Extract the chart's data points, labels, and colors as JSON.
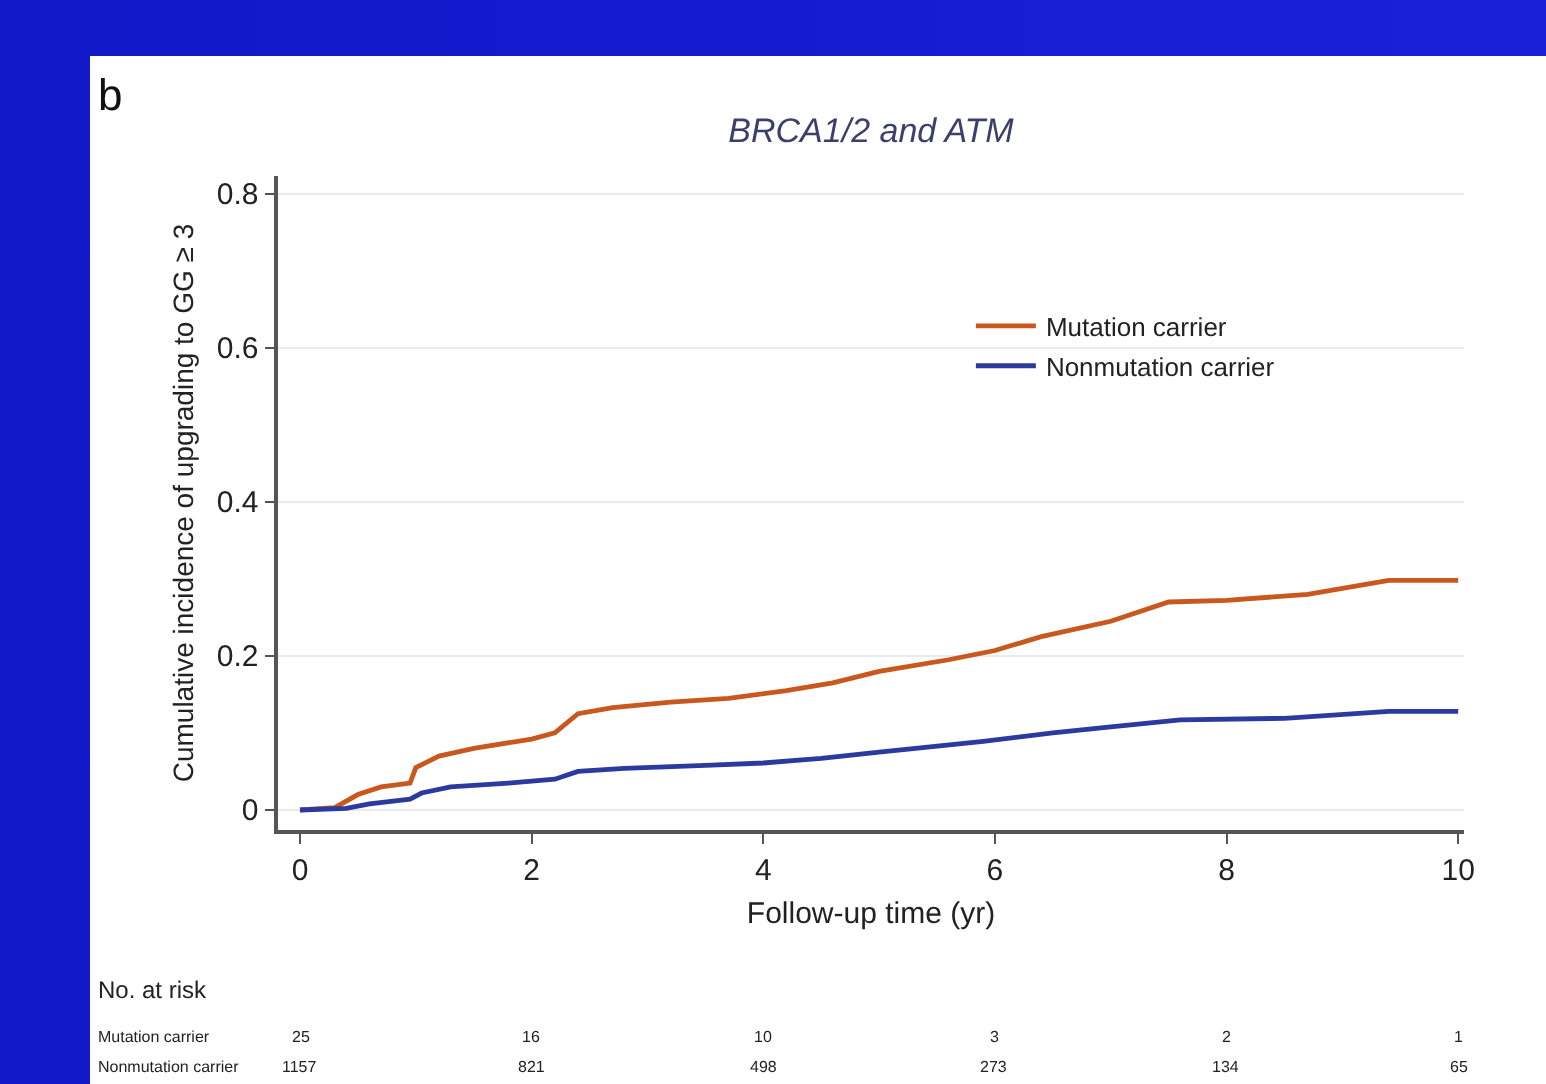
{
  "chart_data": {
    "type": "line",
    "title": "BRCA1/2 and ATM",
    "xlabel": "Follow-up time (yr)",
    "ylabel": "Cumulative incidence of upgrading to GG ≥ 3",
    "xlim": [
      -0.19,
      10.05
    ],
    "xticks": [
      0,
      2,
      4,
      6,
      8,
      10
    ],
    "ylim": [
      -0.026,
      0.823
    ],
    "yticks": [
      0,
      0.2,
      0.4,
      0.6,
      0.8
    ],
    "grid": "y",
    "legend": "right",
    "line_style": "solid",
    "marker": "none",
    "series": [
      {
        "name": "Mutation carrier",
        "color": "#c8581e",
        "x": [
          0,
          0.3,
          0.5,
          0.7,
          0.95,
          1.0,
          1.2,
          1.5,
          2.0,
          2.2,
          2.4,
          2.7,
          3.2,
          3.7,
          4.2,
          4.6,
          5.0,
          5.6,
          6.0,
          6.4,
          7.0,
          7.5,
          8.0,
          8.7,
          9.4,
          10
        ],
        "values": [
          0,
          0.003,
          0.02,
          0.03,
          0.035,
          0.055,
          0.07,
          0.08,
          0.092,
          0.1,
          0.125,
          0.133,
          0.14,
          0.145,
          0.155,
          0.165,
          0.18,
          0.195,
          0.207,
          0.225,
          0.245,
          0.27,
          0.272,
          0.28,
          0.298,
          0.298
        ]
      },
      {
        "name": "Nonmutation carrier",
        "color": "#2b3a9e",
        "x": [
          0,
          0.4,
          0.6,
          0.95,
          1.05,
          1.3,
          1.8,
          2.2,
          2.4,
          2.8,
          3.5,
          4.0,
          4.5,
          5.0,
          5.9,
          6.5,
          7.0,
          7.6,
          8.5,
          9.4,
          10
        ],
        "values": [
          0,
          0.002,
          0.008,
          0.014,
          0.022,
          0.03,
          0.035,
          0.04,
          0.05,
          0.054,
          0.058,
          0.061,
          0.067,
          0.075,
          0.089,
          0.1,
          0.108,
          0.117,
          0.119,
          0.128,
          0.128
        ]
      }
    ],
    "annotations": [
      "b",
      "No. at risk",
      "Mutation carrier",
      "25",
      "16",
      "10",
      "3",
      "2",
      "1",
      "Nonmutation carrier",
      "1157",
      "821",
      "498",
      "273",
      "134",
      "65"
    ]
  }
}
